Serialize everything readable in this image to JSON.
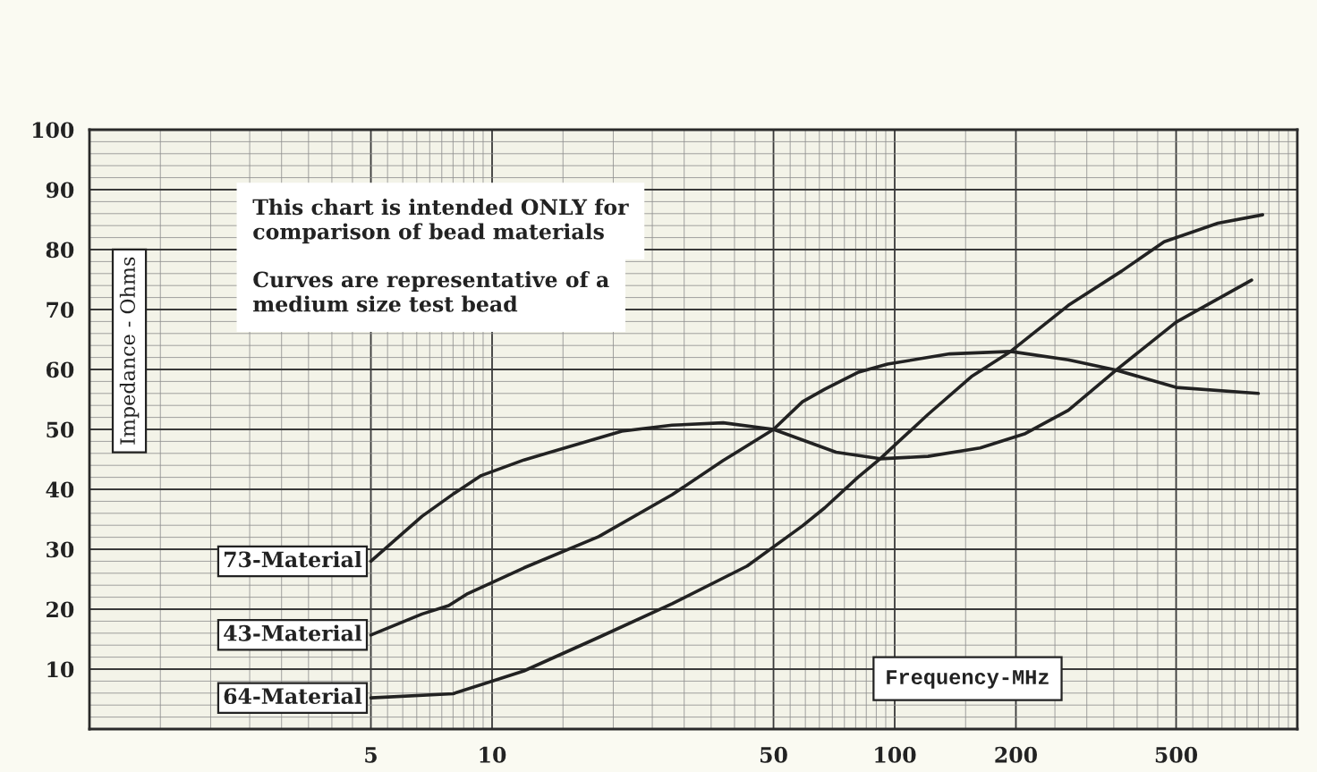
{
  "chart_data": {
    "type": "line",
    "xlabel": "Frequency-MHz",
    "ylabel": "Impedance - Ohms",
    "annotations": [
      "This chart is intended ONLY for\ncomparison of bead materials",
      "Curves are representative of a\nmedium size test bead"
    ],
    "log": "x",
    "xlim": [
      1,
      1000
    ],
    "ylim": [
      0,
      100
    ],
    "xticks": [
      5,
      10,
      50,
      100,
      200,
      500
    ],
    "yticks": [
      10,
      20,
      30,
      40,
      50,
      60,
      70,
      80,
      90,
      100
    ],
    "grid": true,
    "series": [
      {
        "name": "73-Material",
        "color": "#222222",
        "x": [
          5,
          6.7,
          8,
          9.4,
          12,
          21,
          28,
          37.5,
          50,
          71.5,
          92,
          121,
          163,
          211,
          270,
          355,
          500,
          770
        ],
        "values": [
          28,
          35.5,
          39.2,
          42.3,
          44.9,
          49.7,
          50.7,
          51.1,
          50,
          46.2,
          45.1,
          45.5,
          46.9,
          49.3,
          53.2,
          59.9,
          67.9,
          74.9
        ]
      },
      {
        "name": "43-Material",
        "color": "#222222",
        "x": [
          5,
          6.7,
          7.8,
          8.7,
          12,
          18.4,
          28,
          37.5,
          50,
          59,
          67,
          81,
          96,
          137,
          194,
          270,
          355,
          500,
          800
        ],
        "values": [
          15.7,
          19.2,
          20.6,
          22.6,
          26.9,
          32.1,
          39.1,
          44.8,
          50,
          54.6,
          56.7,
          59.5,
          60.9,
          62.6,
          63,
          61.6,
          59.9,
          57,
          56
        ]
      },
      {
        "name": "64-Material",
        "color": "#222222",
        "x": [
          5,
          8,
          12,
          18.4,
          28,
          43,
          59,
          67,
          81,
          92,
          121,
          155,
          194,
          270,
          366,
          467,
          635,
          820
        ],
        "values": [
          5.2,
          5.9,
          9.7,
          15.3,
          20.9,
          27.2,
          33.9,
          36.9,
          42,
          45.1,
          52.5,
          58.8,
          63,
          70.7,
          76.4,
          81.3,
          84.4,
          85.8
        ]
      }
    ]
  }
}
